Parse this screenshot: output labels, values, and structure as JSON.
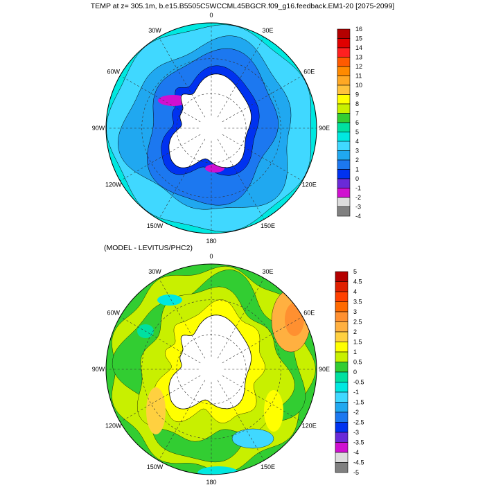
{
  "top_panel": {
    "title": "TEMP at z= 305.1m, b.e15.B5505C5WCCML45BGCR.f09_g16.feedback.EM1-20 [2075-2099]",
    "lon_labels": [
      "0",
      "30E",
      "60E",
      "90E",
      "120E",
      "150E",
      "180",
      "150W",
      "120W",
      "90W",
      "60W",
      "30W"
    ],
    "colorbar": {
      "levels": [
        "16",
        "15",
        "14",
        "13",
        "12",
        "11",
        "10",
        "9",
        "8",
        "7",
        "6",
        "5",
        "4",
        "3",
        "2",
        "1",
        "0",
        "-1",
        "-2",
        "-3",
        "-4"
      ],
      "colors": [
        "#b40000",
        "#e00000",
        "#ff2020",
        "#ff5a00",
        "#ff8a00",
        "#ffa824",
        "#ffc23c",
        "#ffff00",
        "#c8f000",
        "#32cd32",
        "#00e0a0",
        "#00e8e0",
        "#40d8ff",
        "#20a8f0",
        "#1c78f0",
        "#0032f0",
        "#6a2ad8",
        "#d010d0",
        "#dcdcdc",
        "#808080"
      ]
    }
  },
  "bottom_panel": {
    "title": "(MODEL - LEVITUS/PHC2)",
    "lon_labels": [
      "0",
      "30E",
      "60E",
      "90E",
      "120E",
      "150E",
      "180",
      "150W",
      "120W",
      "90W",
      "60W",
      "30W"
    ],
    "colorbar": {
      "levels": [
        "5",
        "4.5",
        "4",
        "3.5",
        "3",
        "2.5",
        "2",
        "1.5",
        "1",
        "0.5",
        "0",
        "-0.5",
        "-1",
        "-1.5",
        "-2",
        "-2.5",
        "-3",
        "-3.5",
        "-4",
        "-4.5",
        "-5"
      ],
      "colors": [
        "#b40000",
        "#e02000",
        "#ff4000",
        "#ff6a00",
        "#ff9030",
        "#ffb040",
        "#ffd040",
        "#ffff00",
        "#c8f000",
        "#32cd32",
        "#00e0a0",
        "#00e8e0",
        "#40d8ff",
        "#20a8f0",
        "#1c78f0",
        "#0032f0",
        "#6a2ad8",
        "#d010d0",
        "#dcdcdc",
        "#808080"
      ]
    }
  }
}
